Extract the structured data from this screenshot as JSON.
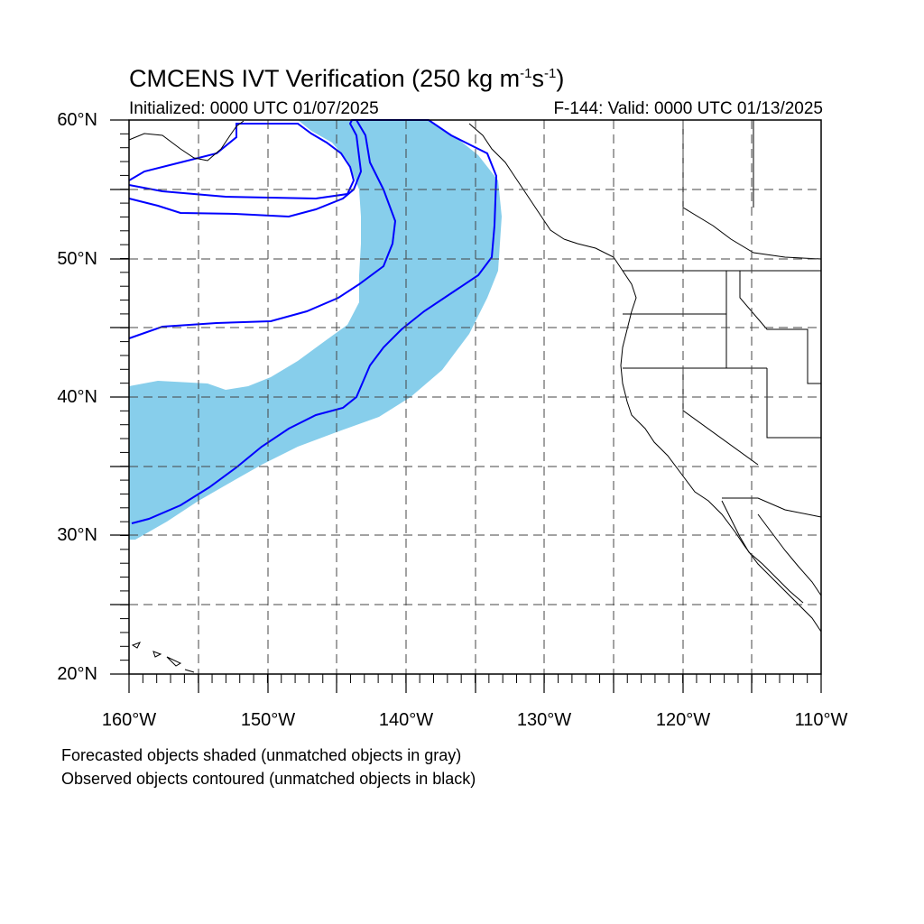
{
  "title_main": "CMCENS IVT Verification (250 kg m",
  "title_sup1": "-1",
  "title_mid": "s",
  "title_sup2": "-1",
  "title_end": ")",
  "subtitle_left": "Initialized: 0000 UTC 01/07/2025",
  "subtitle_right": "F-144: Valid: 0000 UTC 01/13/2025",
  "lat_labels": [
    "60°N",
    "50°N",
    "40°N",
    "30°N",
    "20°N"
  ],
  "lon_labels": [
    "160°W",
    "150°W",
    "140°W",
    "130°W",
    "120°W",
    "110°W"
  ],
  "footnote_1": "Forecasted objects shaded (unmatched objects in gray)",
  "footnote_2": "Observed objects contoured (unmatched objects in black)",
  "map_extent": {
    "lon_min": -160,
    "lon_max": -110,
    "lat_min": 20,
    "lat_max": 60
  },
  "colors": {
    "forecast_shading": "#87ceeb",
    "observed_contour": "#0000ff",
    "coastline": "#000000",
    "grid": "#555555"
  }
}
